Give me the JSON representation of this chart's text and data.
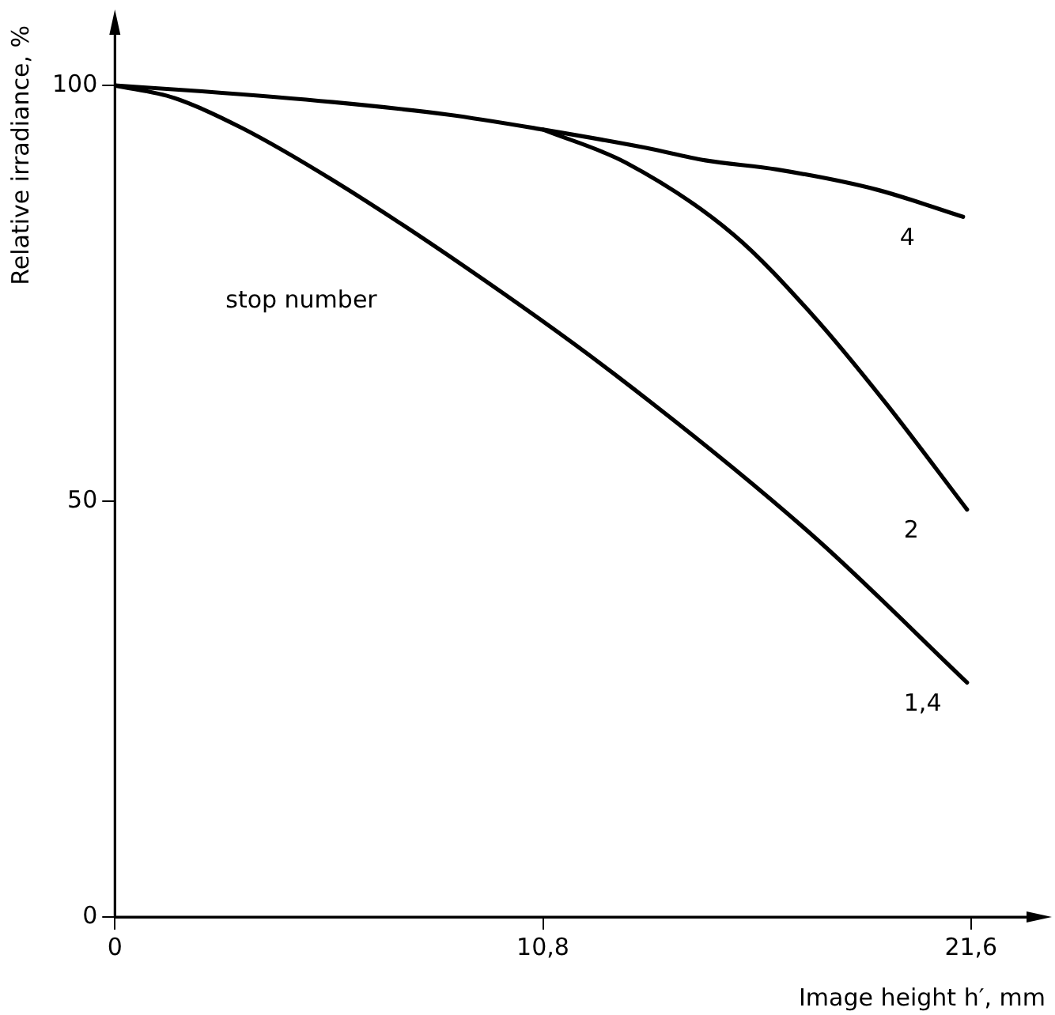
{
  "chart_data": {
    "type": "line",
    "xlabel": "Image height h′, mm",
    "ylabel": "Relative irradiance, %",
    "xlim": [
      0,
      23.4
    ],
    "ylim": [
      0,
      108
    ],
    "xticks": [
      0,
      {
        "value": 10.8,
        "label": "10,8"
      },
      {
        "value": 21.6,
        "label": "21,6"
      }
    ],
    "yticks": [
      0,
      50,
      100
    ],
    "series": [
      {
        "name": "4",
        "color": "#000000",
        "x": [
          0,
          2.2,
          5.5,
          8.4,
          10.8,
          13.4,
          14.9,
          16.7,
          19.2,
          21.4
        ],
        "values": [
          100,
          99.3,
          98.0,
          96.5,
          94.7,
          92.5,
          91.0,
          89.9,
          87.5,
          84.2
        ]
      },
      {
        "name": "2",
        "color": "#000000",
        "x": [
          10.8,
          12.9,
          15.6,
          17.6,
          19.4,
          21.5
        ],
        "values": [
          94.7,
          90.7,
          82.1,
          72.4,
          62.1,
          49.0
        ]
      },
      {
        "name": "1,4",
        "color": "#000000",
        "x": [
          0,
          1.5,
          3.2,
          5.5,
          8.8,
          12.6,
          17.6,
          21.5
        ],
        "values": [
          100,
          98.5,
          94.9,
          88.6,
          78.3,
          65.3,
          45.9,
          28.2
        ]
      }
    ],
    "annotations": [
      "stop number"
    ],
    "grid": false,
    "legend": false,
    "marker": "none",
    "line_style": "solid"
  }
}
